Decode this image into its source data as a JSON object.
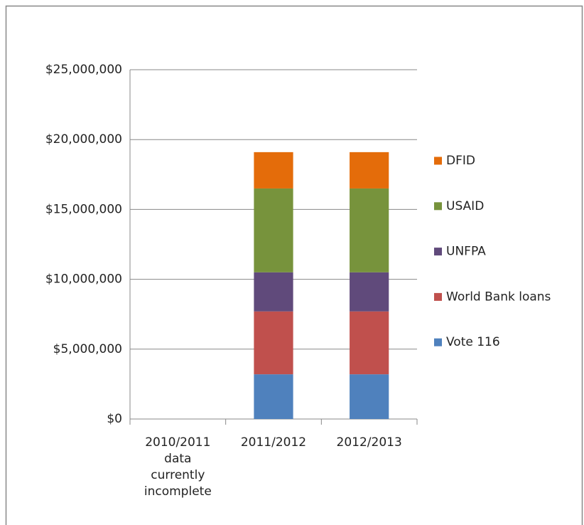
{
  "chart_data": {
    "type": "stacked_bar",
    "categories": [
      "2010/2011 data currently incomplete",
      "2011/2012",
      "2012/2013"
    ],
    "series": [
      {
        "name": "Vote 116",
        "color": "#4f81bd",
        "values": [
          null,
          3200000,
          3200000
        ]
      },
      {
        "name": "World Bank loans",
        "color": "#c0504d",
        "values": [
          null,
          4500000,
          4500000
        ]
      },
      {
        "name": "UNFPA",
        "color": "#604a7b",
        "values": [
          null,
          2800000,
          2800000
        ]
      },
      {
        "name": "USAID",
        "color": "#77933c",
        "values": [
          null,
          6000000,
          6000000
        ]
      },
      {
        "name": "DFID",
        "color": "#e46c0a",
        "values": [
          null,
          2600000,
          2600000
        ]
      }
    ],
    "ylim": [
      0,
      25000000
    ],
    "yticks": [
      {
        "value": 0,
        "label": "$0"
      },
      {
        "value": 5000000,
        "label": "$5,000,000"
      },
      {
        "value": 10000000,
        "label": "$10,000,000"
      },
      {
        "value": 15000000,
        "label": "$15,000,000"
      },
      {
        "value": 20000000,
        "label": "$20,000,000"
      },
      {
        "value": 25000000,
        "label": "$25,000,000"
      }
    ],
    "grid": true,
    "legend": "right"
  }
}
